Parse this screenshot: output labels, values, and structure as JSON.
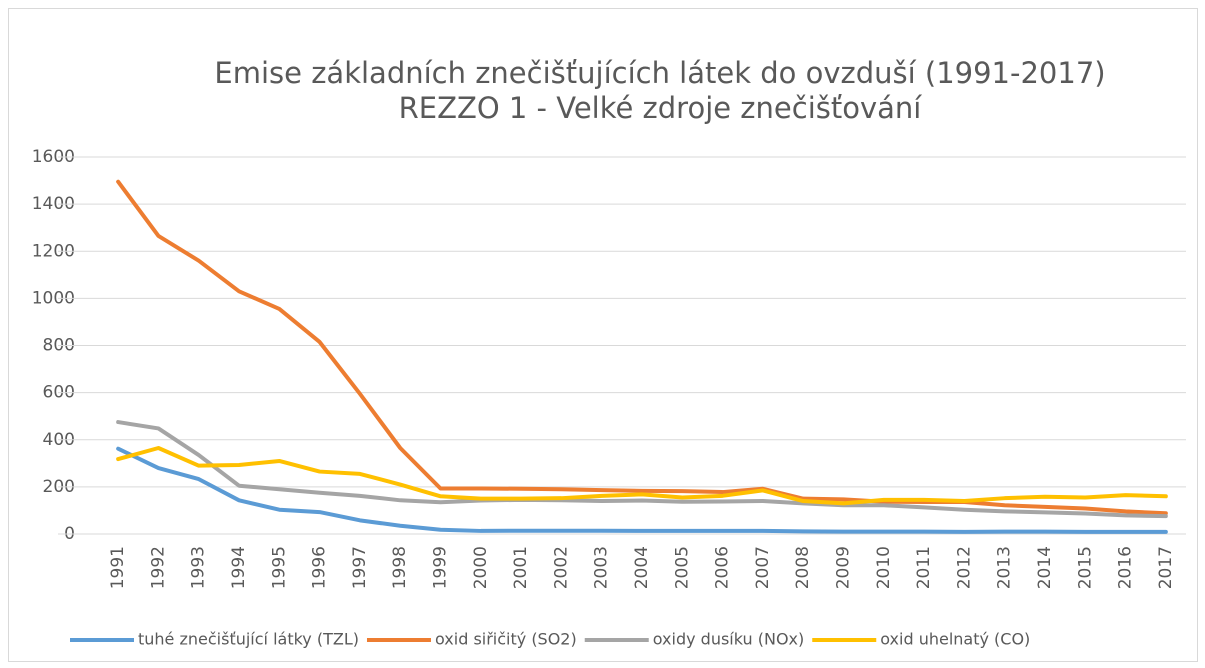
{
  "chart_data": {
    "type": "line",
    "title": "Emise základních znečišťujících látek do ovzduší (1991-2017)",
    "subtitle": "REZZO 1 - Velké zdroje znečišťování",
    "categories": [
      "1991",
      "1992",
      "1993",
      "1994",
      "1995",
      "1996",
      "1997",
      "1998",
      "1999",
      "2000",
      "2001",
      "2002",
      "2003",
      "2004",
      "2005",
      "2006",
      "2007",
      "2008",
      "2009",
      "2010",
      "2011",
      "2012",
      "2013",
      "2014",
      "2015",
      "2016",
      "2017"
    ],
    "series": [
      {
        "name": "tuhé znečišťující látky (TZL)",
        "color": "#5b9bd5",
        "values": [
          362,
          280,
          233,
          143,
          103,
          93,
          58,
          35,
          18,
          13,
          14,
          14,
          14,
          13,
          13,
          13,
          13,
          11,
          10,
          10,
          10,
          9,
          10,
          10,
          9,
          9,
          9
        ]
      },
      {
        "name": "oxid siřičitý (SO2)",
        "color": "#ed7d31",
        "values": [
          1495,
          1265,
          1160,
          1030,
          955,
          815,
          595,
          365,
          193,
          193,
          192,
          190,
          186,
          183,
          182,
          178,
          192,
          150,
          147,
          137,
          136,
          136,
          122,
          115,
          108,
          96,
          88
        ]
      },
      {
        "name": "oxidy dusíku (NOx)",
        "color": "#a5a5a5",
        "values": [
          475,
          448,
          335,
          205,
          190,
          175,
          162,
          143,
          135,
          142,
          145,
          143,
          140,
          142,
          137,
          138,
          140,
          130,
          122,
          122,
          113,
          103,
          96,
          92,
          87,
          79,
          76
        ]
      },
      {
        "name": "oxid uhelnatý (CO)",
        "color": "#ffc000",
        "values": [
          318,
          365,
          290,
          293,
          310,
          265,
          255,
          210,
          160,
          150,
          150,
          152,
          162,
          168,
          155,
          162,
          185,
          140,
          130,
          145,
          145,
          140,
          152,
          158,
          155,
          165,
          160
        ]
      }
    ],
    "ylim": [
      0,
      1600
    ],
    "yticks": [
      0,
      200,
      400,
      600,
      800,
      1000,
      1200,
      1400,
      1600
    ],
    "grid": true,
    "legend": "bottom"
  }
}
